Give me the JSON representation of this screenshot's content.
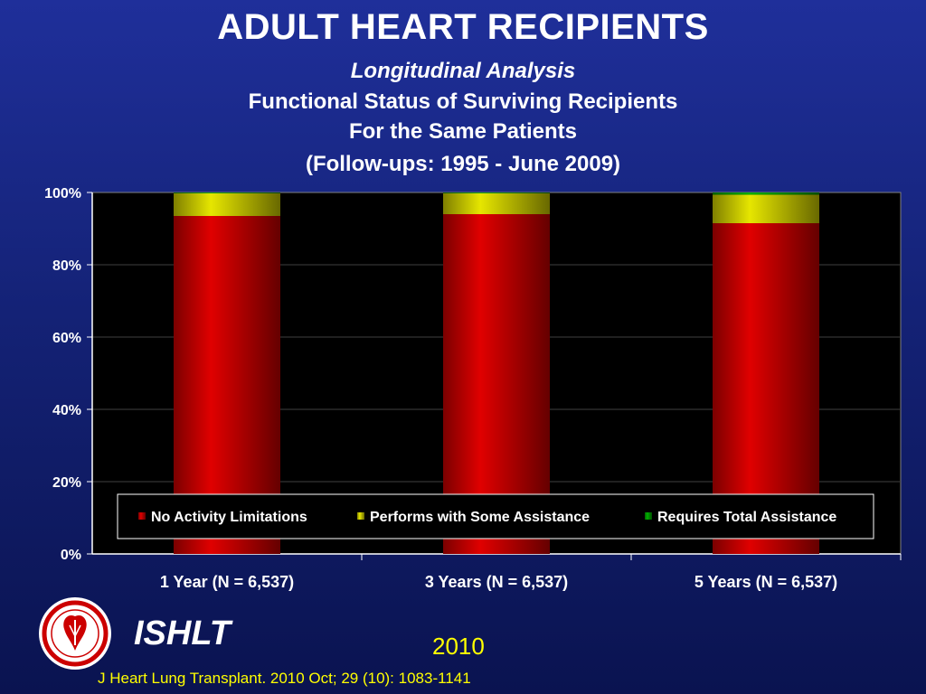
{
  "header": {
    "title": "ADULT HEART RECIPIENTS",
    "subtitle_lines": [
      "Longitudinal Analysis",
      "Functional Status of Surviving Recipients",
      "For the Same Patients",
      "(Follow-ups: 1995 - June 2009)"
    ]
  },
  "footer": {
    "logo_text": "ISHLT",
    "year": "2010",
    "citation": "J Heart Lung Transplant. 2010 Oct; 29 (10): 1083-1141"
  },
  "chart_data": {
    "type": "bar",
    "stacked": true,
    "categories": [
      "1 Year  (N = 6,537)",
      "3 Years  (N = 6,537)",
      "5 Years  (N = 6,537)"
    ],
    "series": [
      {
        "name": "No Activity Limitations",
        "color": "#e00000",
        "values": [
          93.5,
          94.0,
          91.5
        ]
      },
      {
        "name": "Performs with Some Assistance",
        "color": "#e6e600",
        "values": [
          6.3,
          5.8,
          7.9
        ]
      },
      {
        "name": "Requires Total Assistance",
        "color": "#00b000",
        "values": [
          0.2,
          0.2,
          0.6
        ]
      }
    ],
    "ylim": [
      0,
      100
    ],
    "yticks": [
      "0%",
      "20%",
      "40%",
      "60%",
      "80%",
      "100%"
    ],
    "grid": true,
    "legend_position": "bottom-inside"
  }
}
